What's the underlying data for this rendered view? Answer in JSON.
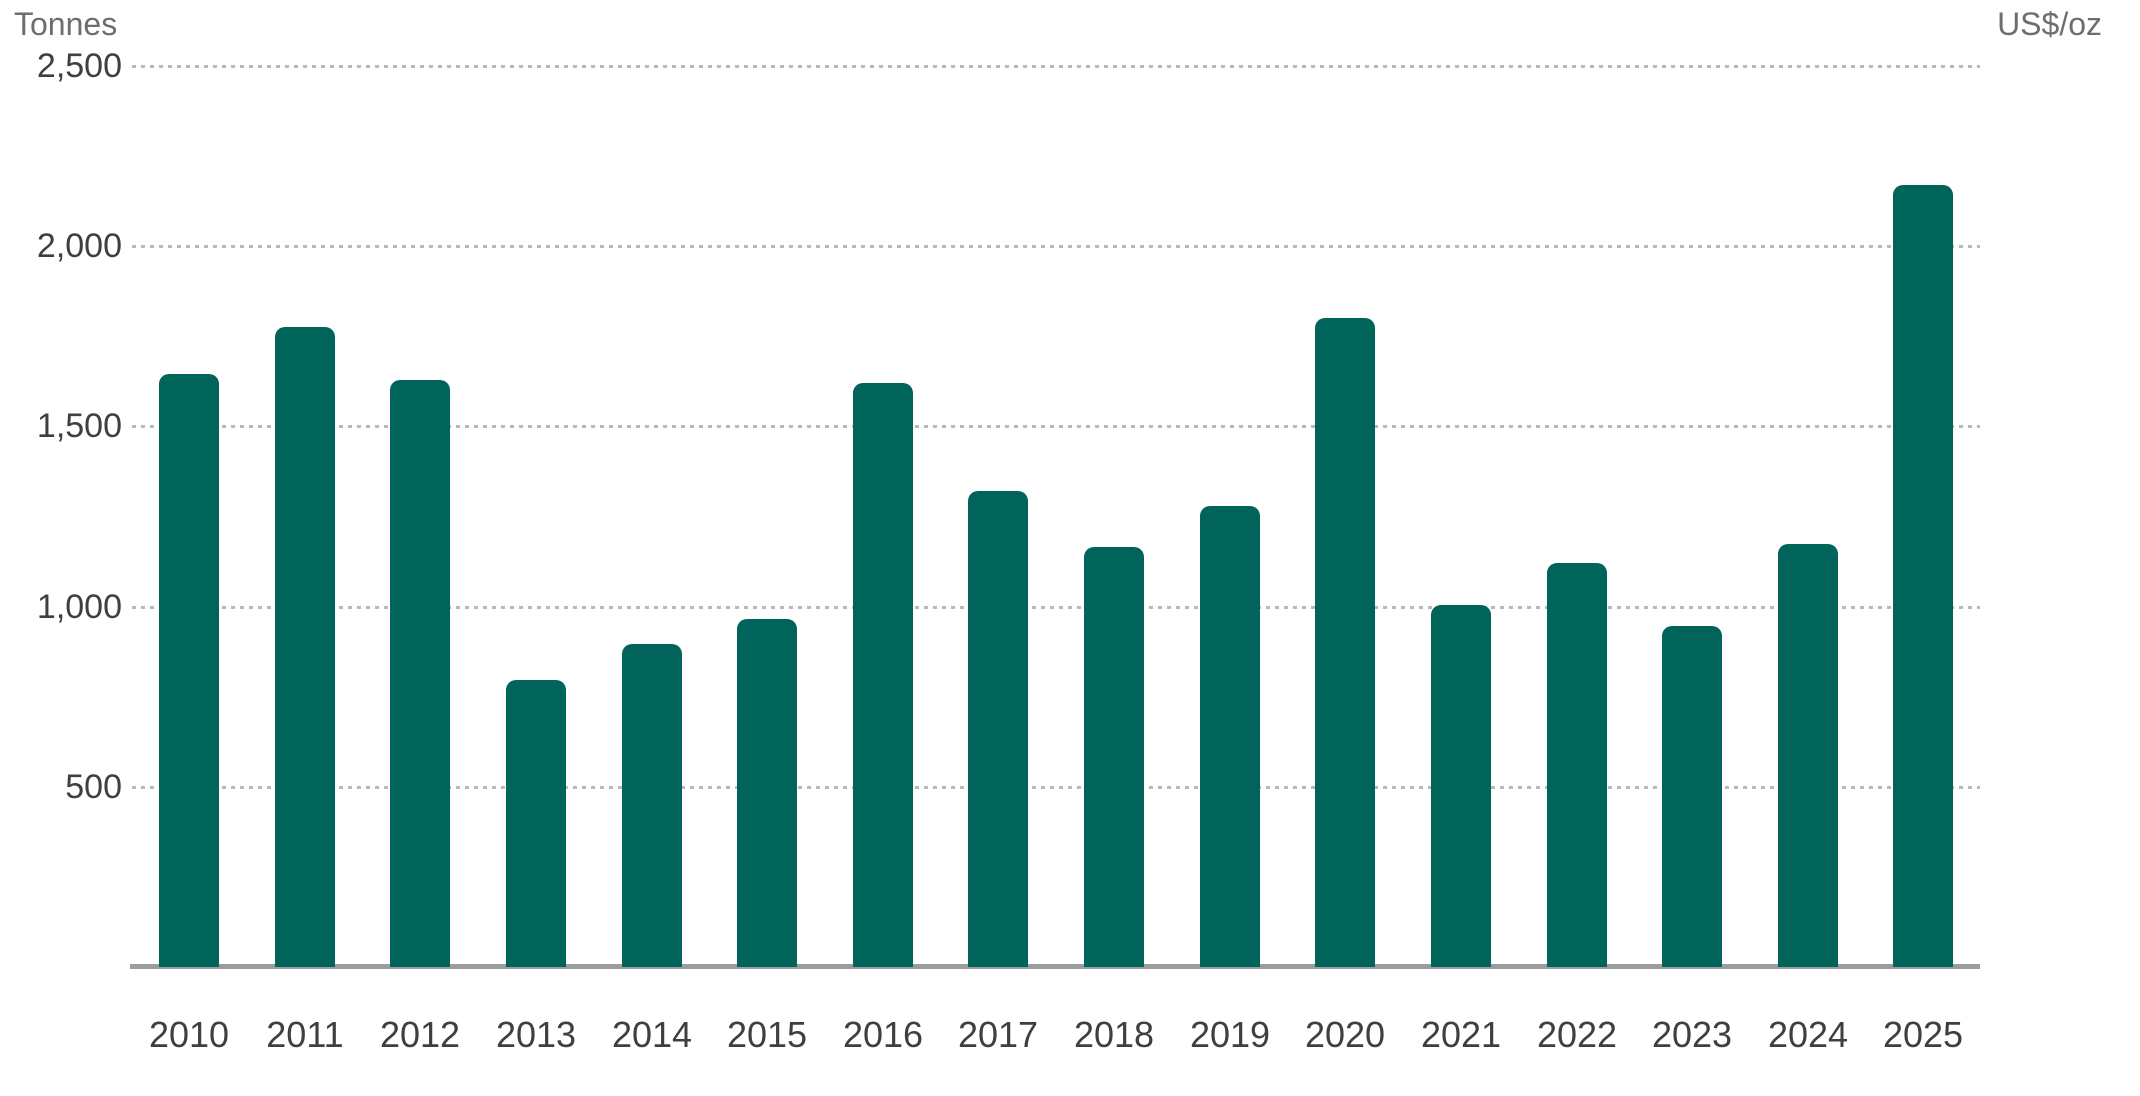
{
  "chart_data": {
    "type": "bar",
    "title": "",
    "left_axis_label": "Tonnes",
    "right_axis_label": "US$/oz",
    "categories": [
      "2010",
      "2011",
      "2012",
      "2013",
      "2014",
      "2015",
      "2016",
      "2017",
      "2018",
      "2019",
      "2020",
      "2021",
      "2022",
      "2023",
      "2024",
      "2025"
    ],
    "values": [
      1645,
      1775,
      1630,
      795,
      895,
      965,
      1620,
      1320,
      1165,
      1280,
      1800,
      1005,
      1120,
      945,
      1175,
      2170
    ],
    "ylim": [
      0,
      2500
    ],
    "yticks": [
      500,
      1000,
      1500,
      2000,
      2500
    ],
    "ytick_labels": [
      "500",
      "1,000",
      "1,500",
      "2,000",
      "2,500"
    ],
    "grid": "horizontal-dotted",
    "legend": "none",
    "bar_color": "#00645B",
    "gridline_color": "#b9b9b9",
    "axisline_color": "#9c9d9e",
    "tick_text_color": "#3e3f41",
    "unit_text_color": "#6d6e70"
  }
}
